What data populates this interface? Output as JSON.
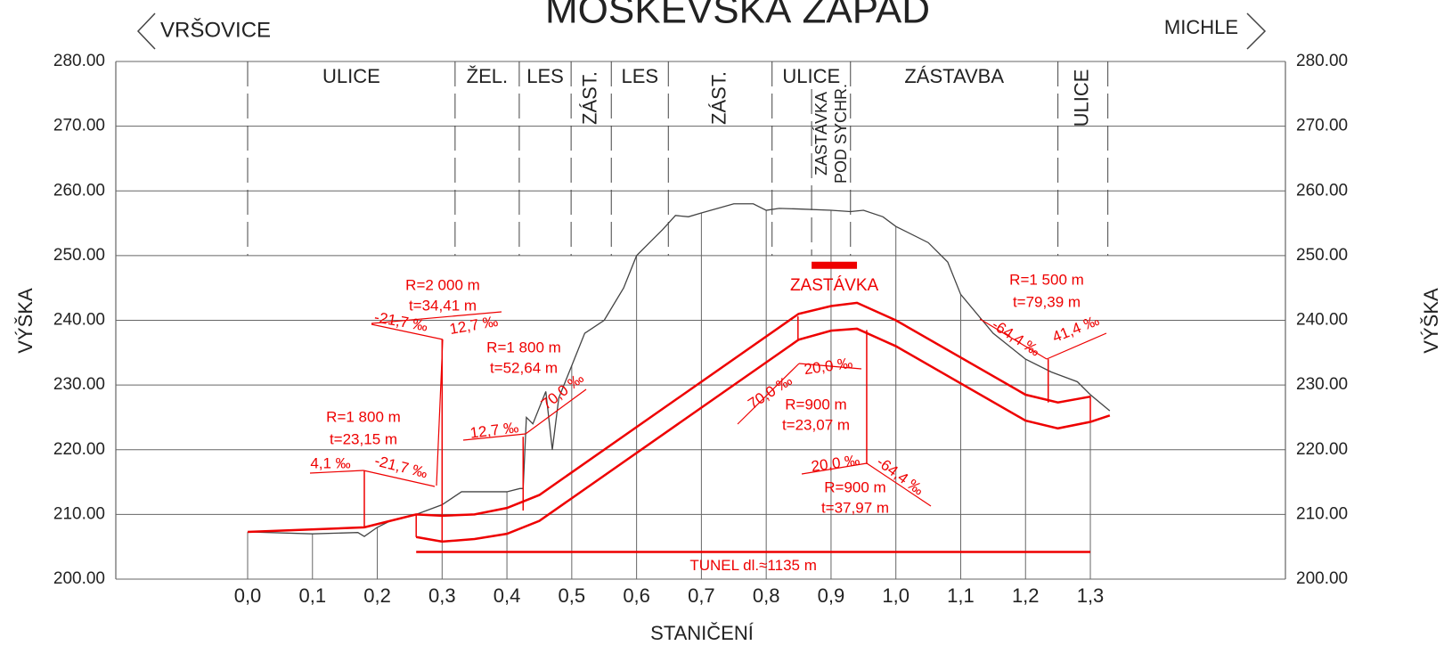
{
  "chart_data": {
    "type": "line",
    "title": "MOSKEVSKÁ ZÁPAD",
    "left_label": "VRŠOVICE",
    "right_label": "MICHLE",
    "ylabel": "VÝŠKA",
    "xlabel": "STANIČENÍ",
    "ylim": [
      200,
      280
    ],
    "yticks": [
      {
        "value": 200,
        "label": "200.00"
      },
      {
        "value": 210,
        "label": "210.00"
      },
      {
        "value": 220,
        "label": "220.00"
      },
      {
        "value": 230,
        "label": "230.00"
      },
      {
        "value": 240,
        "label": "240.00"
      },
      {
        "value": 250,
        "label": "250.00"
      },
      {
        "value": 260,
        "label": "260.00"
      },
      {
        "value": 270,
        "label": "270.00"
      },
      {
        "value": 280,
        "label": "280.00"
      }
    ],
    "xticks": [
      {
        "value": 0,
        "label": "0,0"
      },
      {
        "value": 0.1,
        "label": "0,1"
      },
      {
        "value": 0.2,
        "label": "0,2"
      },
      {
        "value": 0.3,
        "label": "0,3"
      },
      {
        "value": 0.4,
        "label": "0,4"
      },
      {
        "value": 0.5,
        "label": "0,5"
      },
      {
        "value": 0.6,
        "label": "0,6"
      },
      {
        "value": 0.7,
        "label": "0,7"
      },
      {
        "value": 0.8,
        "label": "0,8"
      },
      {
        "value": 0.9,
        "label": "0,9"
      },
      {
        "value": 1.0,
        "label": "1,0"
      },
      {
        "value": 1.1,
        "label": "1,1"
      },
      {
        "value": 1.2,
        "label": "1,2"
      },
      {
        "value": 1.3,
        "label": "1,3"
      }
    ],
    "grid": true,
    "zones": {
      "bounds": [
        0,
        0.32,
        0.419,
        0.499,
        0.561,
        0.649,
        0.809,
        0.93,
        1.25,
        1.327
      ],
      "labels": [
        "ULICE",
        "ŽEL.",
        "LES",
        "ZÁST.",
        "LES",
        "ZÁST.",
        "ULICE",
        "ZÁSTAVBA",
        "ULICE"
      ]
    },
    "zone_stop": {
      "at": 0.87,
      "labels": [
        "ZASTÁVKA",
        "POD SYCHR."
      ]
    },
    "terrain": {
      "color": "#444",
      "x": [
        0,
        0.1,
        0.17,
        0.18,
        0.2,
        0.22,
        0.26,
        0.3,
        0.33,
        0.4,
        0.42,
        0.425,
        0.43,
        0.44,
        0.46,
        0.47,
        0.48,
        0.5,
        0.52,
        0.55,
        0.58,
        0.6,
        0.62,
        0.64,
        0.66,
        0.68,
        0.7,
        0.75,
        0.78,
        0.8,
        0.82,
        0.85,
        0.9,
        0.93,
        0.95,
        0.98,
        1.0,
        1.05,
        1.08,
        1.1,
        1.15,
        1.2,
        1.24,
        1.28,
        1.3,
        1.33
      ],
      "values": [
        207.3,
        207.0,
        207.2,
        206.6,
        208,
        209,
        210,
        211.5,
        213.5,
        213.5,
        214,
        214,
        225,
        224,
        229,
        220,
        228,
        233,
        238,
        240,
        245,
        250,
        252,
        254,
        256.2,
        256,
        256.6,
        258,
        258,
        257,
        257.3,
        257.2,
        257,
        256.8,
        257,
        256,
        254.5,
        252,
        249,
        244,
        238,
        234,
        232,
        230.5,
        228.5,
        226
      ]
    },
    "tunnel_crown": {
      "color": "#e00",
      "x": [
        0,
        0.18,
        0.26,
        0.3,
        0.35,
        0.4,
        0.45,
        0.5,
        0.85,
        0.9,
        0.94,
        1.0,
        1.2,
        1.25,
        1.3
      ],
      "values": [
        207.3,
        208,
        210,
        209.8,
        210,
        211,
        213,
        216.5,
        241,
        242.2,
        242.7,
        240,
        228.5,
        227.3,
        228.2
      ]
    },
    "tunnel_invert": {
      "color": "#e00",
      "x": [
        0.26,
        0.3,
        0.35,
        0.4,
        0.45,
        0.5,
        0.85,
        0.9,
        0.94,
        1.0,
        1.2,
        1.25,
        1.3,
        1.33
      ],
      "values": [
        206.5,
        205.8,
        206.2,
        207,
        209,
        212.5,
        237,
        238.4,
        238.7,
        236,
        224.5,
        223.3,
        224.3,
        225.3
      ]
    },
    "curve_points": [
      {
        "x": 0.18,
        "from": 208,
        "to": 216.8
      },
      {
        "x": 0.3,
        "from": 205.8,
        "to": 237
      },
      {
        "x": 0.425,
        "from": 210.6,
        "to": 222
      },
      {
        "x": 0.849,
        "from": 236.8,
        "to": 240.6
      },
      {
        "x": 0.955,
        "from": 238.5,
        "to": 217.8
      },
      {
        "x": 1.235,
        "from": 227.3,
        "to": 234
      },
      {
        "x": 0.26,
        "from": 206.5,
        "to": 210
      },
      {
        "x": 1.3,
        "from": 224.3,
        "to": 228.2
      }
    ],
    "tunnel_line": {
      "from": 0.26,
      "to": 1.3,
      "at": 204.2,
      "label": "TUNEL dl.≈1135 m"
    },
    "stop_bar": {
      "from": 0.87,
      "to": 0.94,
      "at": 248.5,
      "label": "ZASTÁVKA"
    },
    "annotations": [
      "R=2 000 m",
      "t=34,41 m",
      "-21,7 ‰",
      "12,7 ‰",
      "R=1 800 m",
      "t=52,64 m",
      "12,7 ‰",
      "70,0 ‰",
      "R=1 800 m",
      "t=23,15 m",
      "4,1 ‰",
      "-21,7 ‰",
      "70,0 ‰",
      "20,0 ‰",
      "R=900 m",
      "t=23,07 m",
      "20,0 ‰",
      "-64,4 ‰",
      "R=900 m",
      "t=37,97 m",
      "R=1 500 m",
      "t=79,39 m",
      "-64,4 ‰",
      "41,4 ‰"
    ]
  }
}
